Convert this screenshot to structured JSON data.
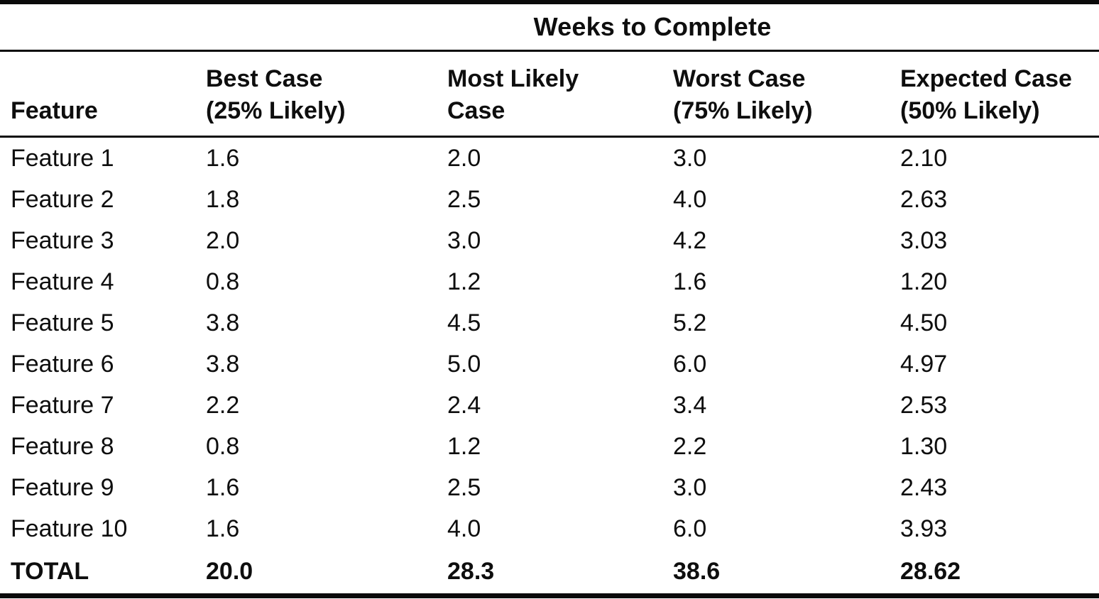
{
  "table": {
    "spanning_header": "Weeks to Complete",
    "columns": {
      "feature": "Feature",
      "best": {
        "line1": "Best Case",
        "line2": "(25% Likely)"
      },
      "most_likely": {
        "line1": "Most Likely",
        "line2": "Case"
      },
      "worst": {
        "line1": "Worst Case",
        "line2": "(75% Likely)"
      },
      "expected": {
        "line1": "Expected Case",
        "line2": "(50% Likely)"
      }
    },
    "rows": [
      {
        "feature": "Feature 1",
        "best": "1.6",
        "most_likely": "2.0",
        "worst": "3.0",
        "expected": "2.10"
      },
      {
        "feature": "Feature 2",
        "best": "1.8",
        "most_likely": "2.5",
        "worst": "4.0",
        "expected": "2.63"
      },
      {
        "feature": "Feature 3",
        "best": "2.0",
        "most_likely": "3.0",
        "worst": "4.2",
        "expected": "3.03"
      },
      {
        "feature": "Feature 4",
        "best": "0.8",
        "most_likely": "1.2",
        "worst": "1.6",
        "expected": "1.20"
      },
      {
        "feature": "Feature 5",
        "best": "3.8",
        "most_likely": "4.5",
        "worst": "5.2",
        "expected": "4.50"
      },
      {
        "feature": "Feature 6",
        "best": "3.8",
        "most_likely": "5.0",
        "worst": "6.0",
        "expected": "4.97"
      },
      {
        "feature": "Feature 7",
        "best": "2.2",
        "most_likely": "2.4",
        "worst": "3.4",
        "expected": "2.53"
      },
      {
        "feature": "Feature 8",
        "best": "0.8",
        "most_likely": "1.2",
        "worst": "2.2",
        "expected": "1.30"
      },
      {
        "feature": "Feature 9",
        "best": "1.6",
        "most_likely": "2.5",
        "worst": "3.0",
        "expected": "2.43"
      },
      {
        "feature": "Feature 10",
        "best": "1.6",
        "most_likely": "4.0",
        "worst": "6.0",
        "expected": "3.93"
      }
    ],
    "total": {
      "feature": "TOTAL",
      "best": "20.0",
      "most_likely": "28.3",
      "worst": "38.6",
      "expected": "28.62"
    }
  },
  "chart_data": {
    "type": "table",
    "title": "Weeks to Complete",
    "categories": [
      "Feature 1",
      "Feature 2",
      "Feature 3",
      "Feature 4",
      "Feature 5",
      "Feature 6",
      "Feature 7",
      "Feature 8",
      "Feature 9",
      "Feature 10",
      "TOTAL"
    ],
    "series": [
      {
        "name": "Best Case (25% Likely)",
        "values": [
          1.6,
          1.8,
          2.0,
          0.8,
          3.8,
          3.8,
          2.2,
          0.8,
          1.6,
          1.6,
          20.0
        ]
      },
      {
        "name": "Most Likely Case",
        "values": [
          2.0,
          2.5,
          3.0,
          1.2,
          4.5,
          5.0,
          2.4,
          1.2,
          2.5,
          4.0,
          28.3
        ]
      },
      {
        "name": "Worst Case (75% Likely)",
        "values": [
          3.0,
          4.0,
          4.2,
          1.6,
          5.2,
          6.0,
          3.4,
          2.2,
          3.0,
          6.0,
          38.6
        ]
      },
      {
        "name": "Expected Case (50% Likely)",
        "values": [
          2.1,
          2.63,
          3.03,
          1.2,
          4.5,
          4.97,
          2.53,
          1.3,
          2.43,
          3.93,
          28.62
        ]
      }
    ]
  }
}
